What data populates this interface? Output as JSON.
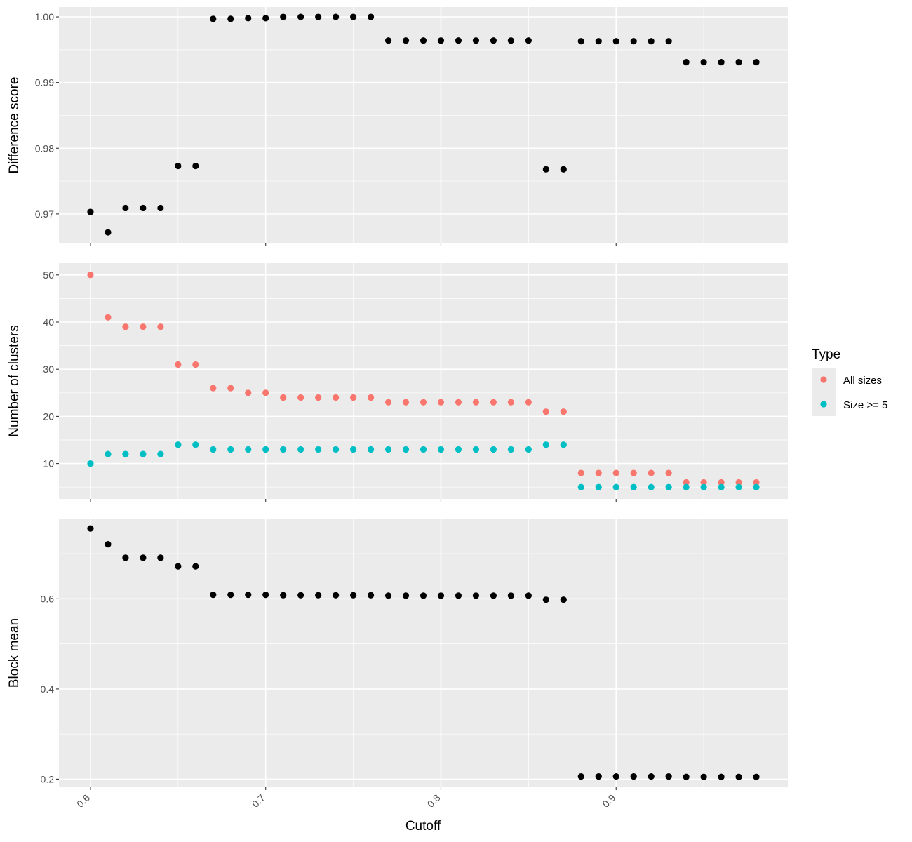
{
  "chart_data": {
    "type": "scatter",
    "xlabel": "Cutoff",
    "x_ticks": [
      "0.6",
      "0.7",
      "0.8",
      "0.9"
    ],
    "x": [
      0.6,
      0.61,
      0.62,
      0.63,
      0.64,
      0.65,
      0.66,
      0.67,
      0.68,
      0.69,
      0.7,
      0.71,
      0.72,
      0.73,
      0.74,
      0.75,
      0.76,
      0.77,
      0.78,
      0.79,
      0.8,
      0.81,
      0.82,
      0.83,
      0.84,
      0.85,
      0.86,
      0.87,
      0.88,
      0.89,
      0.9,
      0.91,
      0.92,
      0.93,
      0.94,
      0.95,
      0.96,
      0.97,
      0.98
    ],
    "xlim": [
      0.582,
      0.998
    ],
    "grid": true,
    "legend": {
      "title": "Type",
      "position": "right",
      "entries": [
        {
          "label": "All sizes",
          "color": "#F8766D"
        },
        {
          "label": "Size >= 5",
          "color": "#00BFC4"
        }
      ]
    },
    "panels": [
      {
        "ylabel": "Difference score",
        "ylim": [
          0.9655,
          1.0015
        ],
        "y_ticks": [
          "0.97",
          "0.98",
          "0.99",
          "1.00"
        ],
        "series": [
          {
            "color": "#000000",
            "values": [
              0.9703,
              0.9672,
              0.9709,
              0.9709,
              0.9709,
              0.9773,
              0.9773,
              0.9997,
              0.9997,
              0.9998,
              0.9998,
              1.0,
              1.0,
              1.0,
              1.0,
              1.0,
              1.0,
              0.9964,
              0.9964,
              0.9964,
              0.9964,
              0.9964,
              0.9964,
              0.9964,
              0.9964,
              0.9964,
              0.9768,
              0.9768,
              0.9963,
              0.9963,
              0.9963,
              0.9963,
              0.9963,
              0.9963,
              0.9931,
              0.9931,
              0.9931,
              0.9931,
              0.9931
            ]
          }
        ]
      },
      {
        "ylabel": "Number of clusters",
        "ylim": [
          2.5,
          52.5
        ],
        "y_ticks": [
          "10",
          "20",
          "30",
          "40",
          "50"
        ],
        "series": [
          {
            "name": "All sizes",
            "color": "#F8766D",
            "values": [
              50,
              41,
              39,
              39,
              39,
              31,
              31,
              26,
              26,
              25,
              25,
              24,
              24,
              24,
              24,
              24,
              24,
              23,
              23,
              23,
              23,
              23,
              23,
              23,
              23,
              23,
              21,
              21,
              8,
              8,
              8,
              8,
              8,
              8,
              6,
              6,
              6,
              6,
              6
            ]
          },
          {
            "name": "Size >= 5",
            "color": "#00BFC4",
            "values": [
              10,
              12,
              12,
              12,
              12,
              14,
              14,
              13,
              13,
              13,
              13,
              13,
              13,
              13,
              13,
              13,
              13,
              13,
              13,
              13,
              13,
              13,
              13,
              13,
              13,
              13,
              14,
              14,
              5,
              5,
              5,
              5,
              5,
              5,
              5,
              5,
              5,
              5,
              5
            ]
          }
        ]
      },
      {
        "ylabel": "Block mean",
        "ylim": [
          0.182,
          0.778
        ],
        "y_ticks": [
          "0.2",
          "0.4",
          "0.6"
        ],
        "series": [
          {
            "color": "#000000",
            "values": [
              0.756,
              0.721,
              0.691,
              0.691,
              0.691,
              0.672,
              0.672,
              0.609,
              0.609,
              0.609,
              0.609,
              0.608,
              0.608,
              0.608,
              0.608,
              0.608,
              0.608,
              0.607,
              0.607,
              0.607,
              0.607,
              0.607,
              0.607,
              0.607,
              0.607,
              0.607,
              0.598,
              0.598,
              0.206,
              0.206,
              0.206,
              0.206,
              0.206,
              0.206,
              0.205,
              0.205,
              0.205,
              0.205,
              0.205
            ]
          }
        ]
      }
    ]
  }
}
